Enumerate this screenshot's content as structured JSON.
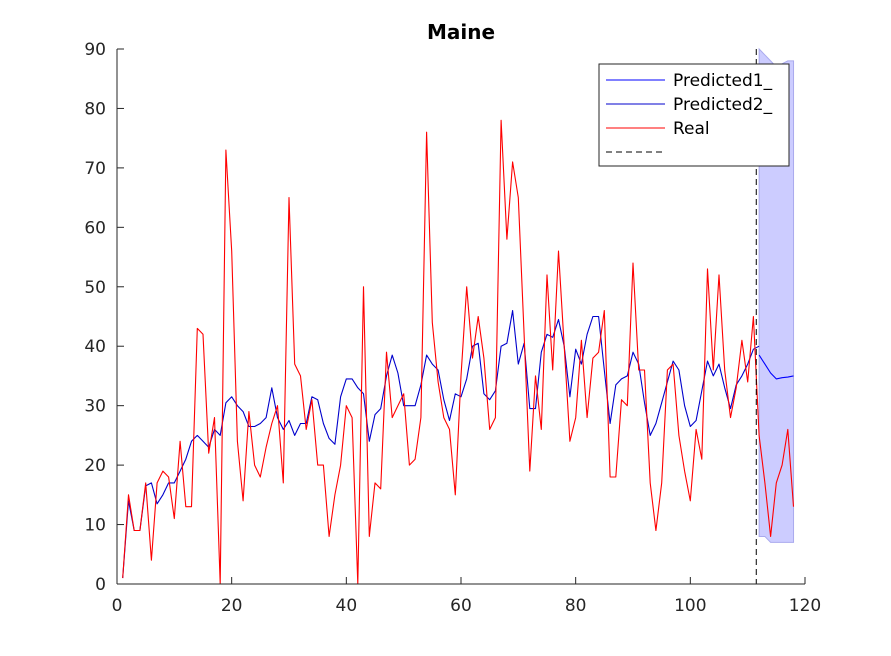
{
  "chart_data": {
    "type": "line",
    "title": "Maine",
    "xlabel": "",
    "ylabel": "",
    "xlim": [
      0,
      120
    ],
    "ylim": [
      0,
      90
    ],
    "xticks": [
      0,
      20,
      40,
      60,
      80,
      100,
      120
    ],
    "yticks": [
      0,
      10,
      20,
      30,
      40,
      50,
      60,
      70,
      80,
      90
    ],
    "grid": false,
    "legend_position": "top-right",
    "series": [
      {
        "name": "Predicted1_",
        "color": "#0000ff",
        "x": [
          112,
          113,
          114,
          115,
          116,
          117,
          118
        ],
        "y": [
          38.5,
          37,
          35.5,
          34.5,
          34.7,
          34.8,
          35
        ]
      },
      {
        "name": "Predicted2_",
        "color": "#0000cc",
        "x": [
          1,
          2,
          3,
          4,
          5,
          6,
          7,
          8,
          9,
          10,
          11,
          12,
          13,
          14,
          15,
          16,
          17,
          18,
          19,
          20,
          21,
          22,
          23,
          24,
          25,
          26,
          27,
          28,
          29,
          30,
          31,
          32,
          33,
          34,
          35,
          36,
          37,
          38,
          39,
          40,
          41,
          42,
          43,
          44,
          45,
          46,
          47,
          48,
          49,
          50,
          51,
          52,
          53,
          54,
          55,
          56,
          57,
          58,
          59,
          60,
          61,
          62,
          63,
          64,
          65,
          66,
          67,
          68,
          69,
          70,
          71,
          72,
          73,
          74,
          75,
          76,
          77,
          78,
          79,
          80,
          81,
          82,
          83,
          84,
          85,
          86,
          87,
          88,
          89,
          90,
          91,
          92,
          93,
          94,
          95,
          96,
          97,
          98,
          99,
          100,
          101,
          102,
          103,
          104,
          105,
          106,
          107,
          108,
          109,
          110,
          111,
          112
        ],
        "y": [
          1,
          14,
          9,
          9,
          16.5,
          17,
          13.5,
          15,
          17,
          17,
          19,
          21,
          24,
          25,
          24,
          23,
          26,
          25,
          30.5,
          31.5,
          30,
          29,
          26.5,
          26.5,
          27,
          28,
          33,
          28,
          26,
          27.5,
          25,
          27,
          27,
          31.5,
          31,
          27,
          24.5,
          23.5,
          31.5,
          34.5,
          34.5,
          33,
          32,
          24,
          28.5,
          29.5,
          35,
          38.5,
          35.5,
          30,
          30,
          30,
          33.5,
          38.5,
          37,
          36,
          31,
          27.5,
          32,
          31.5,
          34.5,
          40,
          40.5,
          32,
          31,
          32.5,
          40,
          40.5,
          46,
          37,
          40.5,
          29.5,
          29.5,
          39,
          42,
          41.5,
          44.5,
          40,
          31.5,
          39.5,
          37,
          42,
          45,
          45,
          36,
          27,
          33.5,
          34.5,
          35,
          39,
          37,
          30.5,
          25,
          27,
          30.5,
          34,
          37.5,
          36,
          30,
          26.5,
          27.5,
          32.5,
          37.5,
          35,
          37,
          33,
          29.5,
          33.5,
          35,
          37,
          39.5,
          40
        ]
      },
      {
        "name": "Real",
        "color": "#ff0000",
        "x": [
          1,
          2,
          3,
          4,
          5,
          6,
          7,
          8,
          9,
          10,
          11,
          12,
          13,
          14,
          15,
          16,
          17,
          18,
          19,
          20,
          21,
          22,
          23,
          24,
          25,
          26,
          27,
          28,
          29,
          30,
          31,
          32,
          33,
          34,
          35,
          36,
          37,
          38,
          39,
          40,
          41,
          42,
          43,
          44,
          45,
          46,
          47,
          48,
          49,
          50,
          51,
          52,
          53,
          54,
          55,
          56,
          57,
          58,
          59,
          60,
          61,
          62,
          63,
          64,
          65,
          66,
          67,
          68,
          69,
          70,
          71,
          72,
          73,
          74,
          75,
          76,
          77,
          78,
          79,
          80,
          81,
          82,
          83,
          84,
          85,
          86,
          87,
          88,
          89,
          90,
          91,
          92,
          93,
          94,
          95,
          96,
          97,
          98,
          99,
          100,
          101,
          102,
          103,
          104,
          105,
          106,
          107,
          108,
          109,
          110,
          111,
          112,
          113,
          114,
          115,
          116,
          117,
          118
        ],
        "y": [
          1,
          15,
          9,
          9,
          17,
          4,
          17,
          19,
          18,
          11,
          24,
          13,
          13,
          43,
          42,
          22,
          28,
          0,
          73,
          56,
          24,
          14,
          29,
          20,
          18,
          23,
          27,
          30,
          17,
          65,
          37,
          35,
          26,
          31,
          20,
          20,
          8,
          15,
          20,
          30,
          28,
          0,
          50,
          8,
          17,
          16,
          39,
          28,
          30,
          32,
          20,
          21,
          28,
          76,
          44,
          34,
          28,
          26,
          15,
          35,
          50,
          38,
          45,
          38,
          26,
          28,
          78,
          58,
          71,
          65,
          42,
          19,
          35,
          26,
          52,
          36,
          56,
          40,
          24,
          28,
          41,
          28,
          38,
          39,
          46,
          18,
          18,
          31,
          30,
          54,
          36,
          36,
          17,
          9,
          17,
          36,
          37,
          25,
          19,
          14,
          26,
          21,
          53,
          36,
          52,
          36,
          28,
          33,
          41,
          34,
          45,
          25,
          17,
          8,
          17,
          20,
          26,
          13
        ]
      }
    ],
    "unnamed_legend_entry": {
      "style": "black dashed line"
    },
    "vertical_line": {
      "x": 111.5,
      "color": "#000000",
      "style": "dashed"
    },
    "confidence_band": {
      "color": "#ccccff",
      "x": [
        112,
        113,
        114,
        115,
        116,
        117,
        118
      ],
      "upper": [
        90,
        89,
        88,
        87,
        87.5,
        88,
        88
      ],
      "lower": [
        8,
        8,
        7,
        7,
        7,
        7,
        7
      ]
    }
  }
}
